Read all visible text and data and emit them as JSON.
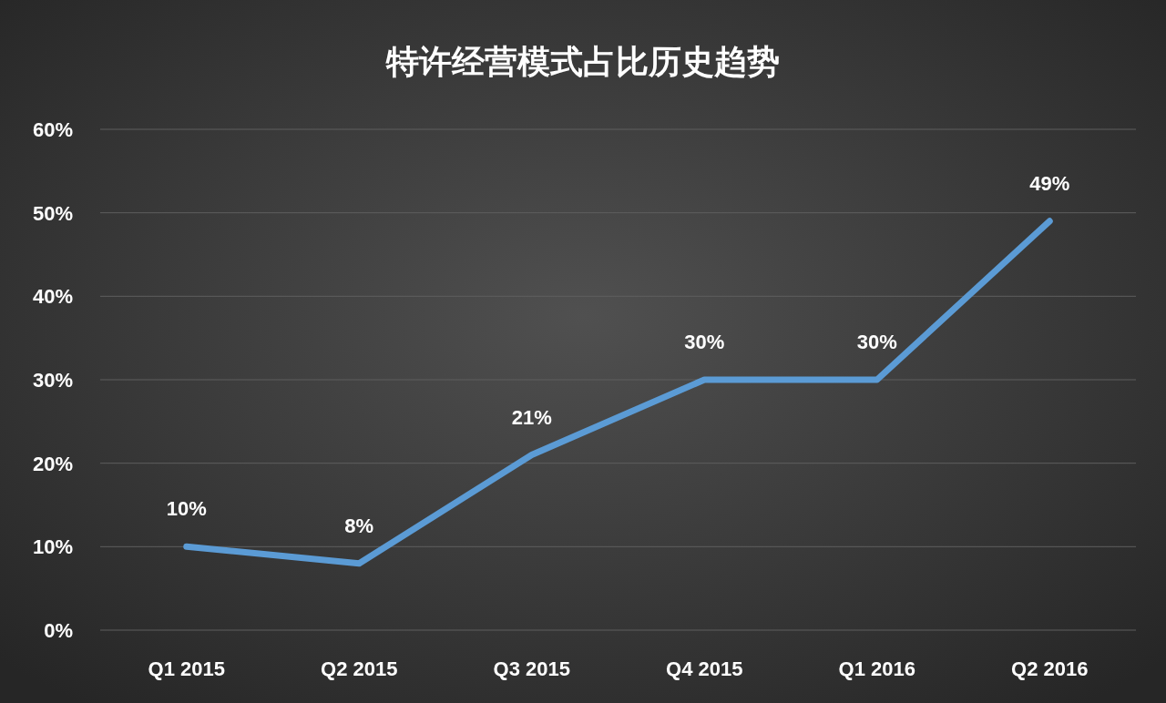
{
  "chart_data": {
    "type": "line",
    "title": "特许经营模式占比历史趋势",
    "categories": [
      "Q1 2015",
      "Q2 2015",
      "Q3 2015",
      "Q4 2015",
      "Q1 2016",
      "Q2 2016"
    ],
    "series": [
      {
        "color": "#5b9bd5",
        "values": [
          10,
          8,
          21,
          30,
          30,
          49
        ],
        "value_labels": [
          "10%",
          "8%",
          "21%",
          "30%",
          "30%",
          "49%"
        ]
      }
    ],
    "ylim": [
      0,
      60
    ],
    "yticks": [
      {
        "value": 0,
        "label": "0%"
      },
      {
        "value": 10,
        "label": "10%"
      },
      {
        "value": 20,
        "label": "20%"
      },
      {
        "value": 30,
        "label": "30%"
      },
      {
        "value": 40,
        "label": "40%"
      },
      {
        "value": 50,
        "label": "50%"
      },
      {
        "value": 60,
        "label": "60%"
      }
    ],
    "grid": "y"
  }
}
